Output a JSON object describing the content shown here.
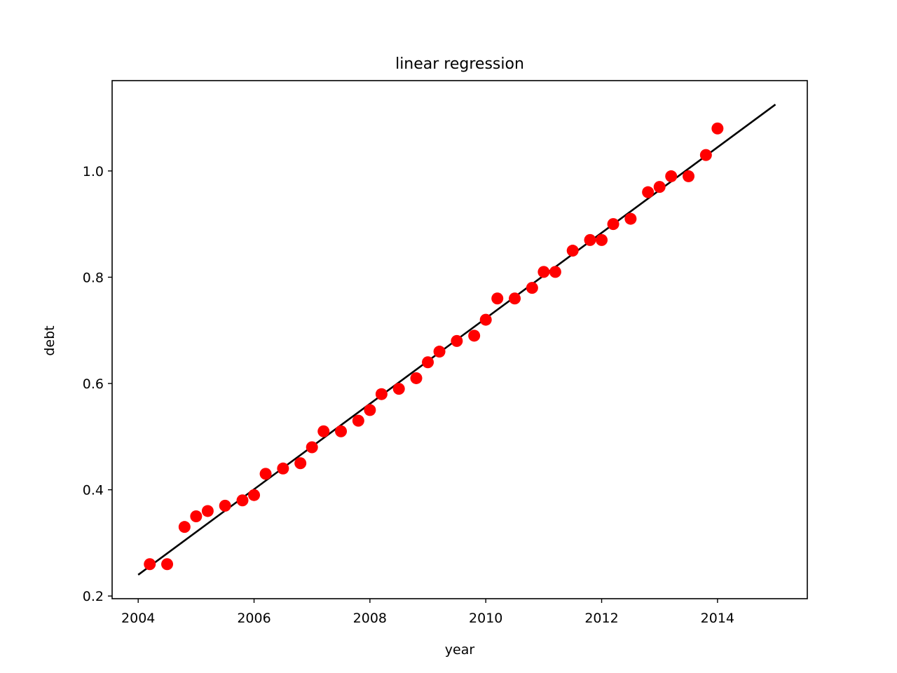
{
  "chart_data": {
    "type": "scatter",
    "title": "linear regression",
    "xlabel": "year",
    "ylabel": "debt",
    "xlim": [
      2003.55,
      2015.55
    ],
    "ylim": [
      0.195,
      1.17
    ],
    "xticks": [
      2004,
      2006,
      2008,
      2010,
      2012,
      2014
    ],
    "xtick_labels": [
      "2004",
      "2006",
      "2008",
      "2010",
      "2012",
      "2014"
    ],
    "yticks": [
      0.2,
      0.4,
      0.6,
      0.8,
      1.0
    ],
    "ytick_labels": [
      "0.2",
      "0.4",
      "0.6",
      "0.8",
      "1.0"
    ],
    "grid": false,
    "series": [
      {
        "type": "scatter",
        "color": "#ff0000",
        "x": [
          2004.2,
          2004.5,
          2004.8,
          2005.0,
          2005.2,
          2005.5,
          2005.8,
          2006.0,
          2006.2,
          2006.5,
          2006.8,
          2007.0,
          2007.2,
          2007.5,
          2007.8,
          2008.0,
          2008.2,
          2008.5,
          2008.8,
          2009.0,
          2009.2,
          2009.5,
          2009.8,
          2010.0,
          2010.2,
          2010.5,
          2010.8,
          2011.0,
          2011.2,
          2011.5,
          2011.8,
          2012.0,
          2012.2,
          2012.5,
          2012.8,
          2013.0,
          2013.2,
          2013.5,
          2013.8,
          2014.0
        ],
        "y": [
          0.26,
          0.26,
          0.33,
          0.35,
          0.36,
          0.37,
          0.38,
          0.39,
          0.43,
          0.44,
          0.45,
          0.48,
          0.51,
          0.51,
          0.53,
          0.55,
          0.58,
          0.59,
          0.61,
          0.64,
          0.66,
          0.68,
          0.69,
          0.72,
          0.76,
          0.76,
          0.78,
          0.81,
          0.81,
          0.85,
          0.87,
          0.87,
          0.9,
          0.91,
          0.96,
          0.97,
          0.99,
          0.99,
          1.03,
          1.08
        ]
      },
      {
        "type": "line",
        "color": "#000000",
        "x": [
          2004.0,
          2015.0
        ],
        "y": [
          0.24,
          1.125
        ]
      }
    ]
  }
}
